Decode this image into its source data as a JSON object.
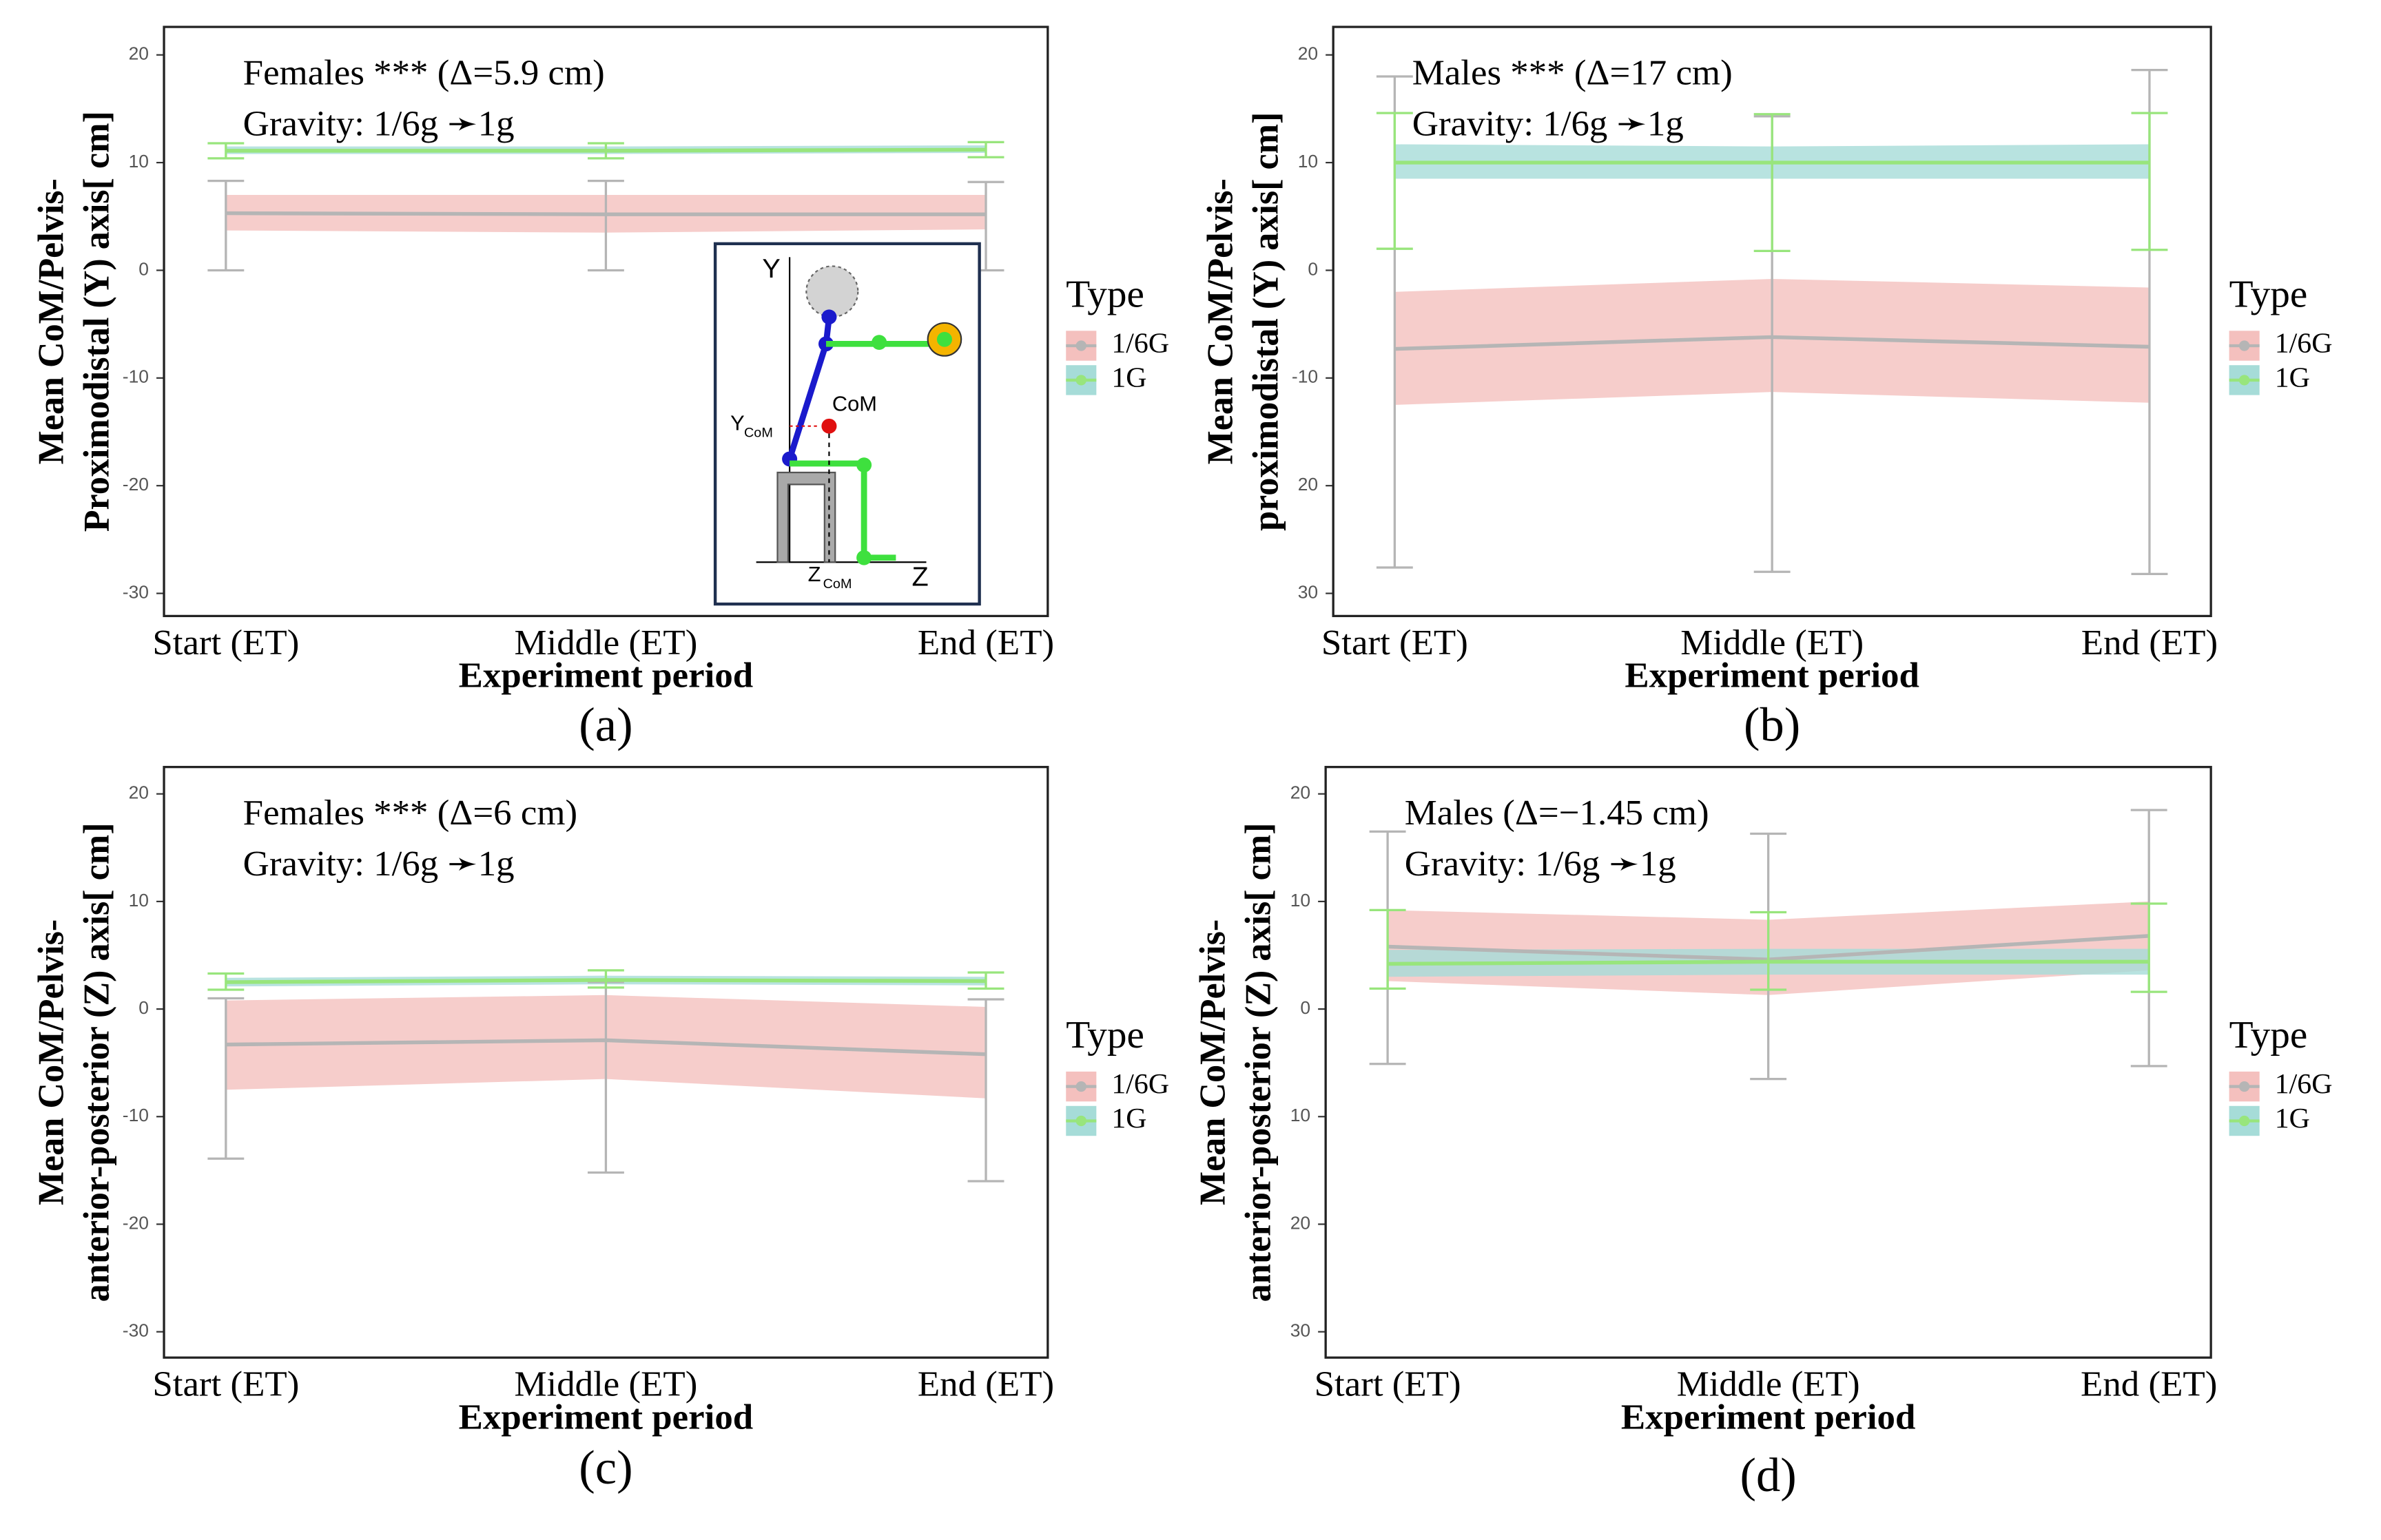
{
  "chart_data": [
    {
      "type": "line",
      "caption": "(a)",
      "annotations": [
        "Females *** (Δ=5.9 cm)",
        "Gravity: 1/6g ➛1g"
      ],
      "xlabel": "Experiment period",
      "ylabel": [
        "Mean CoM/Pelvis-",
        "Proximodistal (Y) axis[ cm]"
      ],
      "legend_title": "Type",
      "categories": [
        "Start (ET)",
        "Middle (ET)",
        "End (ET)"
      ],
      "ylim": [
        -32.1,
        22.6
      ],
      "yticks": [
        20,
        10,
        0,
        -10,
        -20,
        -30
      ],
      "series": [
        {
          "name": "1/6G",
          "color": "#f4c0be",
          "line_color": "#b5b5b5",
          "values": [
            5.3,
            5.2,
            5.2
          ],
          "lower": [
            3.7,
            3.5,
            3.8
          ],
          "upper": [
            7,
            7,
            7
          ],
          "err_low": [
            0,
            0,
            0
          ],
          "err_high": [
            8.3,
            8.3,
            8.2
          ]
        },
        {
          "name": "1G",
          "color": "#a6dcd8",
          "line_color": "#98e57c",
          "values": [
            11.1,
            11.1,
            11.2
          ],
          "lower": [
            10.8,
            10.8,
            10.9
          ],
          "upper": [
            11.5,
            11.5,
            11.6
          ],
          "err_low": [
            10.4,
            10.4,
            10.5
          ],
          "err_high": [
            11.8,
            11.8,
            11.9
          ]
        }
      ],
      "inset": {
        "y_axis": "Y",
        "z_axis": "Z",
        "com": "CoM",
        "y_com": "Y",
        "z_com": "Z",
        "subscript": "CoM"
      }
    },
    {
      "type": "line",
      "caption": "(b)",
      "annotations": [
        "Males *** (Δ=17 cm)",
        "Gravity: 1/6g ➛1g"
      ],
      "xlabel": "Experiment period",
      "ylabel": [
        "Mean CoM/Pelvis-",
        "proximodistal (Y) axis[ cm]"
      ],
      "legend_title": "Type",
      "categories": [
        "Start (ET)",
        "Middle (ET)",
        "End (ET)"
      ],
      "ylim": [
        -32.1,
        22.6
      ],
      "yticks": [
        20,
        10,
        0,
        -10,
        {
          "value": -20,
          "label": "20"
        },
        {
          "value": -30,
          "label": "30"
        }
      ],
      "series": [
        {
          "name": "1/6G",
          "color": "#f4c0be",
          "line_color": "#b5b5b5",
          "values": [
            -7.3,
            -6.2,
            -7.1
          ],
          "lower": [
            -12.5,
            -11.3,
            -12.3
          ],
          "upper": [
            -2,
            -0.8,
            -1.6
          ],
          "err_low": [
            -27.6,
            -28,
            -28.2
          ],
          "err_high": [
            18,
            14.3,
            18.6
          ]
        },
        {
          "name": "1G",
          "color": "#a6dcd8",
          "line_color": "#98e57c",
          "values": [
            10,
            10,
            10
          ],
          "lower": [
            8.5,
            8.5,
            8.5
          ],
          "upper": [
            11.7,
            11.5,
            11.7
          ],
          "err_low": [
            2,
            1.8,
            1.9
          ],
          "err_high": [
            14.6,
            14.5,
            14.6
          ]
        }
      ]
    },
    {
      "type": "line",
      "caption": "(c)",
      "annotations": [
        "Females *** (Δ=6 cm)",
        "Gravity: 1/6g ➛1g"
      ],
      "xlabel": "Experiment period",
      "ylabel": [
        "Mean CoM/Pelvis-",
        "anterior-posterior (Z) axis[ cm]"
      ],
      "legend_title": "Type",
      "categories": [
        "Start (ET)",
        "Middle (ET)",
        "End (ET)"
      ],
      "ylim": [
        -32.4,
        22.5
      ],
      "yticks": [
        20,
        10,
        0,
        -10,
        -20,
        -30
      ],
      "series": [
        {
          "name": "1/6G",
          "color": "#f4c0be",
          "line_color": "#b5b5b5",
          "values": [
            -3.3,
            -2.9,
            -4.2
          ],
          "lower": [
            -7.5,
            -6.5,
            -8.3
          ],
          "upper": [
            0.8,
            1.3,
            0.2
          ],
          "err_low": [
            -13.9,
            -15.2,
            -16
          ],
          "err_high": [
            1,
            2.5,
            0.9
          ]
        },
        {
          "name": "1G",
          "color": "#a6dcd8",
          "line_color": "#98e57c",
          "values": [
            2.5,
            2.7,
            2.6
          ],
          "lower": [
            2.1,
            2.3,
            2.2
          ],
          "upper": [
            2.9,
            3.1,
            3
          ],
          "err_low": [
            1.8,
            2,
            1.9
          ],
          "err_high": [
            3.3,
            3.6,
            3.4
          ]
        }
      ]
    },
    {
      "type": "line",
      "caption": "(d)",
      "annotations": [
        "Males (Δ=−1.45 cm)",
        "Gravity: 1/6g ➛1g"
      ],
      "xlabel": "Experiment period",
      "ylabel": [
        "Mean CoM/Pelvis-",
        "anterior-posterior (Z) axis[ cm]"
      ],
      "legend_title": "Type",
      "categories": [
        "Start (ET)",
        "Middle (ET)",
        "End (ET)"
      ],
      "ylim": [
        -32.4,
        22.5
      ],
      "yticks": [
        20,
        10,
        0,
        {
          "value": -10,
          "label": "10"
        },
        {
          "value": -20,
          "label": "20"
        },
        {
          "value": -30,
          "label": "30"
        }
      ],
      "series": [
        {
          "name": "1/6G",
          "color": "#f4c0be",
          "line_color": "#b5b5b5",
          "values": [
            5.8,
            4.6,
            6.8
          ],
          "lower": [
            2.6,
            1.3,
            3.6
          ],
          "upper": [
            9.2,
            8.3,
            10
          ],
          "err_low": [
            -5.1,
            -6.5,
            -5.3
          ],
          "err_high": [
            16.5,
            16.3,
            18.5
          ]
        },
        {
          "name": "1G",
          "color": "#a6dcd8",
          "line_color": "#98e57c",
          "values": [
            4.2,
            4.4,
            4.4
          ],
          "lower": [
            3,
            3.2,
            3.2
          ],
          "upper": [
            5.5,
            5.6,
            5.6
          ],
          "err_low": [
            1.9,
            1.8,
            1.6
          ],
          "err_high": [
            9.2,
            9,
            9.8
          ]
        }
      ]
    }
  ]
}
